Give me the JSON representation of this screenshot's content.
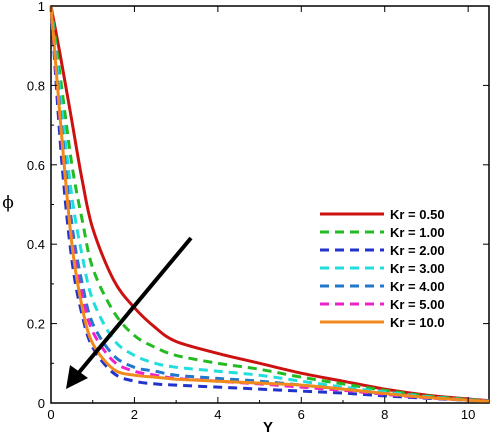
{
  "chart_data": {
    "type": "line",
    "title": "",
    "xlabel": "Y",
    "ylabel": "ϕ",
    "xlim": [
      0,
      10.5
    ],
    "ylim": [
      0,
      1
    ],
    "x_ticks": [
      "0",
      "2",
      "4",
      "6",
      "8",
      "10"
    ],
    "y_ticks": [
      "0",
      "0.2",
      "0.4",
      "0.6",
      "0.8",
      "1"
    ],
    "grid": false,
    "legend_position": "right",
    "annotation": "arrow pointing toward lower-left indicating increasing Kr",
    "x": [
      0,
      0.25,
      0.5,
      0.75,
      1,
      1.5,
      2,
      2.5,
      3,
      4,
      5,
      6,
      7,
      8,
      9,
      10,
      10.5
    ],
    "series": [
      {
        "name": "Kr = 0.50",
        "color": "#cc1111",
        "dash": "solid",
        "values": [
          1.0,
          0.86,
          0.71,
          0.56,
          0.44,
          0.31,
          0.24,
          0.19,
          0.155,
          0.125,
          0.1,
          0.075,
          0.055,
          0.035,
          0.02,
          0.01,
          0.006
        ]
      },
      {
        "name": "Kr = 1.00",
        "color": "#22bb22",
        "dash": "dashed",
        "values": [
          1.0,
          0.8,
          0.6,
          0.46,
          0.34,
          0.23,
          0.17,
          0.14,
          0.12,
          0.1,
          0.085,
          0.065,
          0.048,
          0.032,
          0.018,
          0.009,
          0.005
        ]
      },
      {
        "name": "Kr = 2.00",
        "color": "#2233cc",
        "dash": "dashed",
        "values": [
          1.0,
          0.62,
          0.36,
          0.22,
          0.14,
          0.075,
          0.055,
          0.048,
          0.045,
          0.04,
          0.035,
          0.03,
          0.025,
          0.018,
          0.012,
          0.007,
          0.004
        ]
      },
      {
        "name": "Kr = 3.00",
        "color": "#22dddd",
        "dash": "dashed",
        "values": [
          1.0,
          0.75,
          0.52,
          0.37,
          0.26,
          0.16,
          0.12,
          0.1,
          0.09,
          0.08,
          0.07,
          0.055,
          0.04,
          0.028,
          0.016,
          0.008,
          0.005
        ]
      },
      {
        "name": "Kr = 4.00",
        "color": "#2277cc",
        "dash": "dashed",
        "values": [
          1.0,
          0.7,
          0.45,
          0.3,
          0.2,
          0.12,
          0.09,
          0.08,
          0.07,
          0.062,
          0.055,
          0.045,
          0.035,
          0.024,
          0.014,
          0.007,
          0.004
        ]
      },
      {
        "name": "Kr = 5.00",
        "color": "#ee22cc",
        "dash": "dashed",
        "values": [
          1.0,
          0.67,
          0.41,
          0.27,
          0.18,
          0.105,
          0.08,
          0.07,
          0.062,
          0.055,
          0.048,
          0.04,
          0.032,
          0.022,
          0.013,
          0.007,
          0.004
        ]
      },
      {
        "name": "Kr = 10.0",
        "color": "#f08a1c",
        "dash": "solid",
        "values": [
          1.0,
          0.68,
          0.4,
          0.24,
          0.15,
          0.085,
          0.07,
          0.065,
          0.06,
          0.055,
          0.05,
          0.045,
          0.035,
          0.024,
          0.014,
          0.007,
          0.004
        ]
      }
    ]
  }
}
